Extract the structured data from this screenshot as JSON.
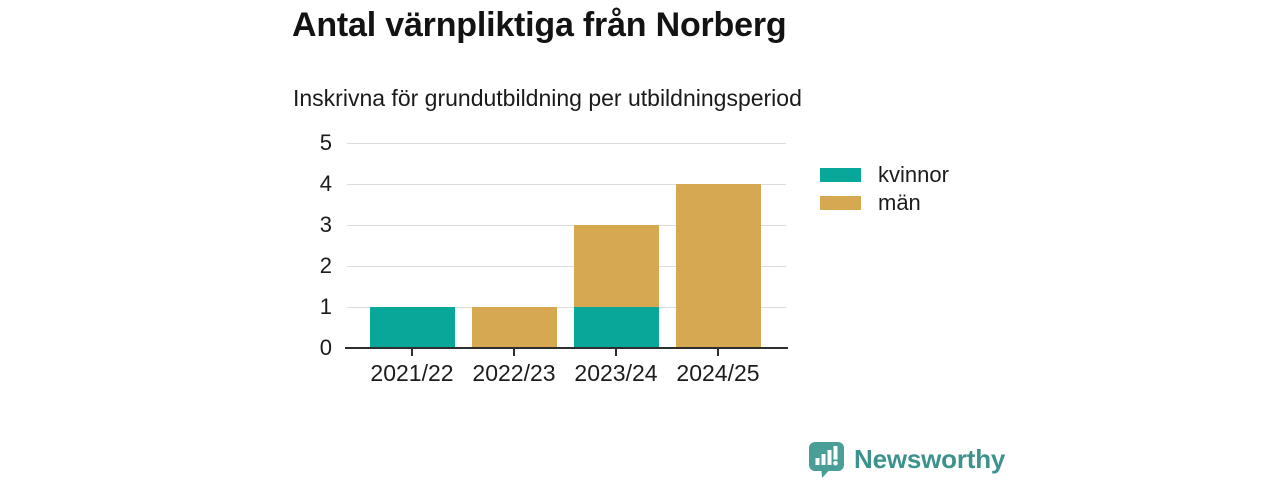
{
  "header": {
    "title": "Antal värnpliktiga från Norberg",
    "subtitle": "Inskrivna för grundutbildning per utbildningsperiod"
  },
  "chart_data": {
    "type": "bar",
    "stacked": true,
    "title": "Antal värnpliktiga från Norberg",
    "subtitle": "Inskrivna för grundutbildning per utbildningsperiod",
    "xlabel": "",
    "ylabel": "",
    "categories": [
      "2021/22",
      "2022/23",
      "2023/24",
      "2024/25"
    ],
    "series": [
      {
        "name": "kvinnor",
        "color": "#09a79a",
        "values": [
          1,
          0,
          1,
          0
        ]
      },
      {
        "name": "män",
        "color": "#d6a851",
        "values": [
          0,
          1,
          2,
          4
        ]
      }
    ],
    "totals": [
      1,
      1,
      3,
      4
    ],
    "yticks": [
      0,
      1,
      2,
      3,
      4,
      5
    ],
    "ylim": [
      0,
      5
    ],
    "grid": true,
    "legend_position": "right"
  },
  "footer": {
    "brand": "Newsworthy",
    "brand_text_color": "#3d928e",
    "logo_bubble_color": "#4a9e98",
    "logo_glyph_color": "#ffffff",
    "logo_icon": "newsworthy-speech-bubble-bar-chart-icon"
  }
}
